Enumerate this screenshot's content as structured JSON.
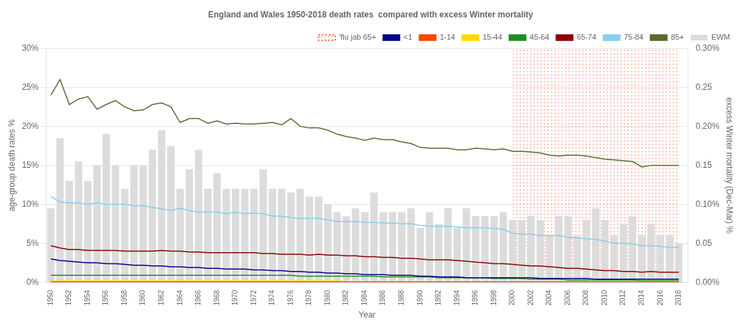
{
  "chart_data": {
    "type": "bar",
    "title": "England and Wales 1950-2018 death rates  compared with excess Winter mortality",
    "xlabel": "Year",
    "ylabel": "age-group death rates %",
    "y2label": "excess Winter mortality (Dec-Mar) %",
    "x": [
      1950,
      1951,
      1952,
      1953,
      1954,
      1955,
      1956,
      1957,
      1958,
      1959,
      1960,
      1961,
      1962,
      1963,
      1964,
      1965,
      1966,
      1967,
      1968,
      1969,
      1970,
      1971,
      1972,
      1973,
      1974,
      1975,
      1976,
      1977,
      1978,
      1979,
      1980,
      1981,
      1982,
      1983,
      1984,
      1985,
      1986,
      1987,
      1988,
      1989,
      1990,
      1991,
      1992,
      1993,
      1994,
      1995,
      1996,
      1997,
      1998,
      1999,
      2000,
      2001,
      2002,
      2003,
      2004,
      2005,
      2006,
      2007,
      2008,
      2009,
      2010,
      2011,
      2012,
      2013,
      2014,
      2015,
      2016,
      2017,
      2018
    ],
    "xlim": [
      1949.5,
      2019.0
    ],
    "xticks": [
      1950,
      1952,
      1954,
      1956,
      1958,
      1960,
      1962,
      1964,
      1966,
      1968,
      1970,
      1972,
      1974,
      1976,
      1978,
      1980,
      1982,
      1984,
      1986,
      1988,
      1990,
      1992,
      1994,
      1996,
      1998,
      2000,
      2002,
      2004,
      2006,
      2008,
      2010,
      2012,
      2014,
      2016,
      2018
    ],
    "ylim": [
      0,
      0.3
    ],
    "yticks": [
      {
        "value": 0.0,
        "label": "0%"
      },
      {
        "value": 0.05,
        "label": "5%"
      },
      {
        "value": 0.1,
        "label": "10%"
      },
      {
        "value": 0.15,
        "label": "15%"
      },
      {
        "value": 0.2,
        "label": "20%"
      },
      {
        "value": 0.25,
        "label": "25%"
      },
      {
        "value": 0.3,
        "label": "30%"
      }
    ],
    "y2lim": [
      0,
      0.3
    ],
    "y2ticks": [
      {
        "value": 0.0,
        "label": "0.00%"
      },
      0.05,
      {
        "value": 0.1,
        "label": "0.10%"
      },
      0.15,
      {
        "value": 0.2,
        "label": "0.20%"
      },
      0.25,
      {
        "value": 0.3,
        "label": "0.30%"
      }
    ],
    "grid": "y",
    "legend": "upper right",
    "series": [
      {
        "name": "'flu jab 65+",
        "type": "span",
        "color": "#FF6347",
        "line_style": "dotted",
        "span": [
          2000,
          2018
        ]
      },
      {
        "name": "EWM",
        "type": "bar",
        "color": "#DCDCDC",
        "values": [
          0.095,
          0.185,
          0.13,
          0.155,
          0.13,
          0.15,
          0.19,
          0.15,
          0.12,
          0.15,
          0.15,
          0.17,
          0.195,
          0.175,
          0.12,
          0.145,
          0.17,
          0.12,
          0.14,
          0.12,
          0.12,
          0.12,
          0.12,
          0.145,
          0.12,
          0.12,
          0.115,
          0.12,
          0.11,
          0.11,
          0.1,
          0.09,
          0.085,
          0.095,
          0.09,
          0.115,
          0.09,
          0.09,
          0.09,
          0.095,
          0.07,
          0.09,
          0.075,
          0.095,
          0.07,
          0.095,
          0.085,
          0.085,
          0.085,
          0.09,
          0.08,
          0.08,
          0.085,
          0.08,
          0.06,
          0.085,
          0.085,
          0.06,
          0.08,
          0.095,
          0.08,
          0.06,
          0.075,
          0.085,
          0.06,
          0.075,
          0.06,
          0.06,
          0.05
        ]
      },
      {
        "name": "<1",
        "type": "line",
        "color": "#00008B",
        "values": [
          0.03,
          0.028,
          0.027,
          0.026,
          0.025,
          0.025,
          0.024,
          0.024,
          0.023,
          0.022,
          0.022,
          0.021,
          0.021,
          0.02,
          0.02,
          0.019,
          0.019,
          0.018,
          0.018,
          0.017,
          0.017,
          0.017,
          0.016,
          0.016,
          0.015,
          0.015,
          0.014,
          0.014,
          0.013,
          0.013,
          0.012,
          0.012,
          0.011,
          0.011,
          0.01,
          0.01,
          0.01,
          0.009,
          0.009,
          0.009,
          0.008,
          0.008,
          0.007,
          0.007,
          0.007,
          0.006,
          0.006,
          0.006,
          0.006,
          0.006,
          0.006,
          0.006,
          0.006,
          0.005,
          0.005,
          0.005,
          0.005,
          0.005,
          0.005,
          0.004,
          0.004,
          0.004,
          0.004,
          0.004,
          0.004,
          0.004,
          0.004,
          0.004,
          0.004
        ]
      },
      {
        "name": "1-14",
        "type": "line",
        "color": "#FF4500",
        "values": [
          0.0005,
          0.0005,
          0.0005,
          0.0005,
          0.0005,
          0.0005,
          0.0005,
          0.0005,
          0.0005,
          0.0005,
          0.0005,
          0.0005,
          0.0005,
          0.0005,
          0.0005,
          0.0005,
          0.0005,
          0.0005,
          0.0005,
          0.0005,
          0.0005,
          0.0005,
          0.0005,
          0.0005,
          0.0005,
          0.0005,
          0.0005,
          0.0005,
          0.0005,
          0.0005,
          0.0005,
          0.0005,
          0.0005,
          0.0005,
          0.0005,
          0.0005,
          0.0005,
          0.0005,
          0.0005,
          0.0005,
          0.0005,
          0.0005,
          0.0005,
          0.0005,
          0.0005,
          0.0005,
          0.0005,
          0.0005,
          0.0005,
          0.0005,
          0.0005,
          0.0005,
          0.0005,
          0.0005,
          0.0005,
          0.0005,
          0.0005,
          0.0005,
          0.0005,
          0.0005,
          0.0005,
          0.0005,
          0.0005,
          0.0005,
          0.0005,
          0.0005,
          0.0005,
          0.0005,
          0.0005
        ]
      },
      {
        "name": "15-44",
        "type": "line",
        "color": "#FFD700",
        "values": [
          0.002,
          0.002,
          0.002,
          0.002,
          0.002,
          0.002,
          0.002,
          0.002,
          0.002,
          0.002,
          0.002,
          0.002,
          0.002,
          0.002,
          0.002,
          0.002,
          0.002,
          0.002,
          0.002,
          0.002,
          0.002,
          0.002,
          0.002,
          0.002,
          0.002,
          0.002,
          0.002,
          0.002,
          0.002,
          0.002,
          0.002,
          0.002,
          0.001,
          0.001,
          0.001,
          0.001,
          0.001,
          0.001,
          0.001,
          0.001,
          0.001,
          0.001,
          0.001,
          0.001,
          0.001,
          0.001,
          0.001,
          0.001,
          0.001,
          0.001,
          0.001,
          0.001,
          0.001,
          0.001,
          0.001,
          0.001,
          0.001,
          0.001,
          0.001,
          0.001,
          0.001,
          0.001,
          0.001,
          0.001,
          0.001,
          0.001,
          0.001,
          0.001,
          0.001
        ]
      },
      {
        "name": "45-64",
        "type": "line",
        "color": "#228B22",
        "values": [
          0.009,
          0.009,
          0.009,
          0.009,
          0.009,
          0.009,
          0.009,
          0.009,
          0.009,
          0.009,
          0.009,
          0.009,
          0.009,
          0.009,
          0.009,
          0.009,
          0.009,
          0.009,
          0.009,
          0.009,
          0.009,
          0.009,
          0.009,
          0.009,
          0.009,
          0.009,
          0.009,
          0.008,
          0.008,
          0.008,
          0.008,
          0.008,
          0.008,
          0.008,
          0.008,
          0.008,
          0.007,
          0.007,
          0.007,
          0.007,
          0.007,
          0.007,
          0.006,
          0.006,
          0.006,
          0.006,
          0.006,
          0.006,
          0.005,
          0.005,
          0.005,
          0.005,
          0.004,
          0.004,
          0.004,
          0.004,
          0.003,
          0.003,
          0.003,
          0.003,
          0.003,
          0.003,
          0.003,
          0.003,
          0.002,
          0.002,
          0.002,
          0.002,
          0.002
        ]
      },
      {
        "name": "65-74",
        "type": "line",
        "color": "#8B0000",
        "values": [
          0.047,
          0.044,
          0.042,
          0.042,
          0.041,
          0.041,
          0.041,
          0.041,
          0.04,
          0.04,
          0.04,
          0.04,
          0.041,
          0.04,
          0.04,
          0.039,
          0.039,
          0.038,
          0.038,
          0.038,
          0.038,
          0.038,
          0.038,
          0.037,
          0.037,
          0.036,
          0.036,
          0.036,
          0.035,
          0.036,
          0.035,
          0.035,
          0.034,
          0.034,
          0.033,
          0.033,
          0.032,
          0.032,
          0.031,
          0.031,
          0.03,
          0.029,
          0.029,
          0.029,
          0.028,
          0.027,
          0.026,
          0.025,
          0.024,
          0.024,
          0.023,
          0.022,
          0.021,
          0.021,
          0.02,
          0.019,
          0.018,
          0.018,
          0.017,
          0.016,
          0.015,
          0.015,
          0.014,
          0.014,
          0.013,
          0.014,
          0.013,
          0.013,
          0.013
        ]
      },
      {
        "name": "75-84",
        "type": "line",
        "color": "#87CEEB",
        "values": [
          0.11,
          0.103,
          0.102,
          0.102,
          0.1,
          0.102,
          0.1,
          0.1,
          0.1,
          0.098,
          0.098,
          0.096,
          0.094,
          0.092,
          0.095,
          0.092,
          0.09,
          0.09,
          0.09,
          0.088,
          0.09,
          0.088,
          0.089,
          0.088,
          0.085,
          0.085,
          0.083,
          0.082,
          0.082,
          0.082,
          0.08,
          0.078,
          0.078,
          0.078,
          0.077,
          0.077,
          0.076,
          0.076,
          0.075,
          0.075,
          0.073,
          0.072,
          0.072,
          0.072,
          0.071,
          0.07,
          0.07,
          0.07,
          0.069,
          0.068,
          0.063,
          0.062,
          0.062,
          0.06,
          0.06,
          0.06,
          0.058,
          0.057,
          0.056,
          0.055,
          0.053,
          0.05,
          0.05,
          0.049,
          0.047,
          0.047,
          0.046,
          0.045,
          0.045
        ]
      },
      {
        "name": "85+",
        "type": "line",
        "color": "#556B2F",
        "values": [
          0.24,
          0.26,
          0.228,
          0.235,
          0.238,
          0.222,
          0.228,
          0.233,
          0.225,
          0.22,
          0.221,
          0.228,
          0.23,
          0.225,
          0.205,
          0.21,
          0.21,
          0.204,
          0.207,
          0.203,
          0.204,
          0.203,
          0.203,
          0.204,
          0.205,
          0.202,
          0.21,
          0.2,
          0.198,
          0.198,
          0.195,
          0.19,
          0.187,
          0.185,
          0.182,
          0.185,
          0.183,
          0.183,
          0.18,
          0.178,
          0.173,
          0.172,
          0.172,
          0.172,
          0.17,
          0.17,
          0.172,
          0.171,
          0.17,
          0.171,
          0.168,
          0.168,
          0.167,
          0.166,
          0.163,
          0.162,
          0.163,
          0.163,
          0.162,
          0.16,
          0.158,
          0.157,
          0.156,
          0.155,
          0.148,
          0.15,
          0.15,
          0.15,
          0.15
        ]
      }
    ]
  }
}
